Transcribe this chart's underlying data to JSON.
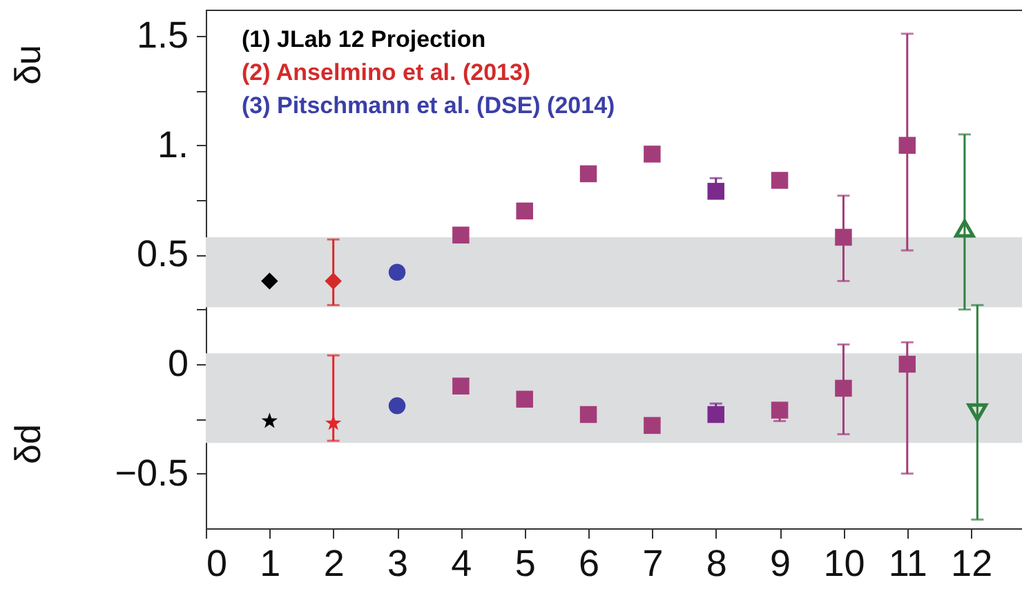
{
  "chart_data": {
    "type": "scatter",
    "ylabel": "δu",
    "annotations": [
      "δd"
    ],
    "xlim": [
      0,
      12.8
    ],
    "xticks": [
      0,
      1,
      2,
      3,
      4,
      5,
      6,
      7,
      8,
      9,
      10,
      11,
      12
    ],
    "ylim": [
      -0.75,
      1.62
    ],
    "yticks": [
      {
        "value": -0.5,
        "label": "−0.5"
      },
      {
        "value": -0.25,
        "label": null
      },
      0,
      {
        "value": 0.25,
        "label": null
      },
      0.5,
      {
        "value": 0.75,
        "label": null
      },
      {
        "value": 1,
        "label": "1."
      },
      {
        "value": 1.25,
        "label": null
      },
      1.5
    ],
    "legend": "top left",
    "bands": [
      {
        "axis": "y",
        "from": 0.26,
        "to": 0.58,
        "color": "#dcdddf"
      },
      {
        "axis": "y",
        "from": -0.36,
        "to": 0.05,
        "color": "#dcdddf"
      }
    ],
    "series": [
      {
        "name": "(1) JLab 12 Projection",
        "color": "#000000",
        "marker": "diamond",
        "x": [
          1
        ],
        "values": [
          0.38
        ]
      },
      {
        "color": "#000000",
        "marker": "star",
        "x": [
          1
        ],
        "values": [
          -0.26
        ]
      },
      {
        "name": "(2) Anselmino et al. (2013)",
        "color": "#d42a2a",
        "marker": "diamond",
        "x": [
          2
        ],
        "values": [
          0.38
        ],
        "errors": [
          [
            0.27,
            0.57
          ]
        ]
      },
      {
        "color": "#e3262a",
        "marker": "star",
        "x": [
          2
        ],
        "values": [
          -0.27
        ],
        "errors": [
          [
            -0.35,
            0.04
          ]
        ]
      },
      {
        "name": "(3) Pitschmann et al. (DSE) (2014)",
        "color": "#3b3fa8",
        "marker": "circle",
        "x": [
          3,
          3
        ],
        "values": [
          0.42,
          -0.19
        ]
      },
      {
        "color": "#a33d7a",
        "marker": "square",
        "x": [
          4,
          5,
          6,
          7,
          9,
          10,
          11
        ],
        "values": [
          0.59,
          0.7,
          0.87,
          0.96,
          0.84,
          0.58,
          1.0
        ],
        "errors": [
          null,
          null,
          null,
          null,
          null,
          [
            0.38,
            0.77
          ],
          [
            0.52,
            1.51
          ]
        ]
      },
      {
        "color": "#a33d7a",
        "marker": "square",
        "x": [
          4,
          5,
          6,
          7,
          9,
          10,
          11
        ],
        "values": [
          -0.1,
          -0.16,
          -0.23,
          -0.28,
          -0.21,
          -0.11,
          0.0
        ],
        "errors": [
          null,
          null,
          null,
          null,
          [
            -0.26,
            -0.18
          ],
          [
            -0.32,
            0.09
          ],
          [
            -0.5,
            0.1
          ]
        ]
      },
      {
        "color": "#7b2a8c",
        "marker": "square",
        "x": [
          8,
          8
        ],
        "values": [
          0.79,
          -0.23
        ],
        "errors": [
          [
            0.77,
            0.85
          ],
          [
            -0.25,
            -0.18
          ]
        ]
      },
      {
        "color": "#2e8040",
        "marker": "triangle",
        "x": [
          11.9
        ],
        "values": [
          0.62
        ],
        "errors": [
          [
            0.25,
            1.05
          ]
        ]
      },
      {
        "color": "#2e8040",
        "marker": "triangle-down",
        "x": [
          12.1
        ],
        "values": [
          -0.22
        ],
        "errors": [
          [
            -0.71,
            0.27
          ]
        ]
      }
    ]
  }
}
